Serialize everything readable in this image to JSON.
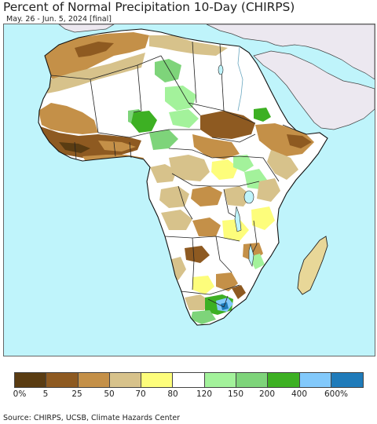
{
  "title": "Percent of Normal Precipitation 10-Day (CHIRPS)",
  "subtitle": "May. 26 - Jun. 5, 2024 [final]",
  "source": "Source: CHIRPS, UCSB, Climate Hazards Center",
  "colors": {
    "ocean": "#bff4fb",
    "non_africa_land": "#ece8f0",
    "borders": "#222222"
  },
  "legend": {
    "colors": [
      "#5a3c12",
      "#8e5a21",
      "#c49048",
      "#d7c28b",
      "#fdfd7b",
      "#ffffff",
      "#a3f29b",
      "#7ed47a",
      "#3db023",
      "#82c9fb",
      "#1f7bba"
    ],
    "labels": [
      "0%",
      "5",
      "25",
      "50",
      "70",
      "80",
      "120",
      "150",
      "200",
      "400",
      "600%"
    ]
  }
}
